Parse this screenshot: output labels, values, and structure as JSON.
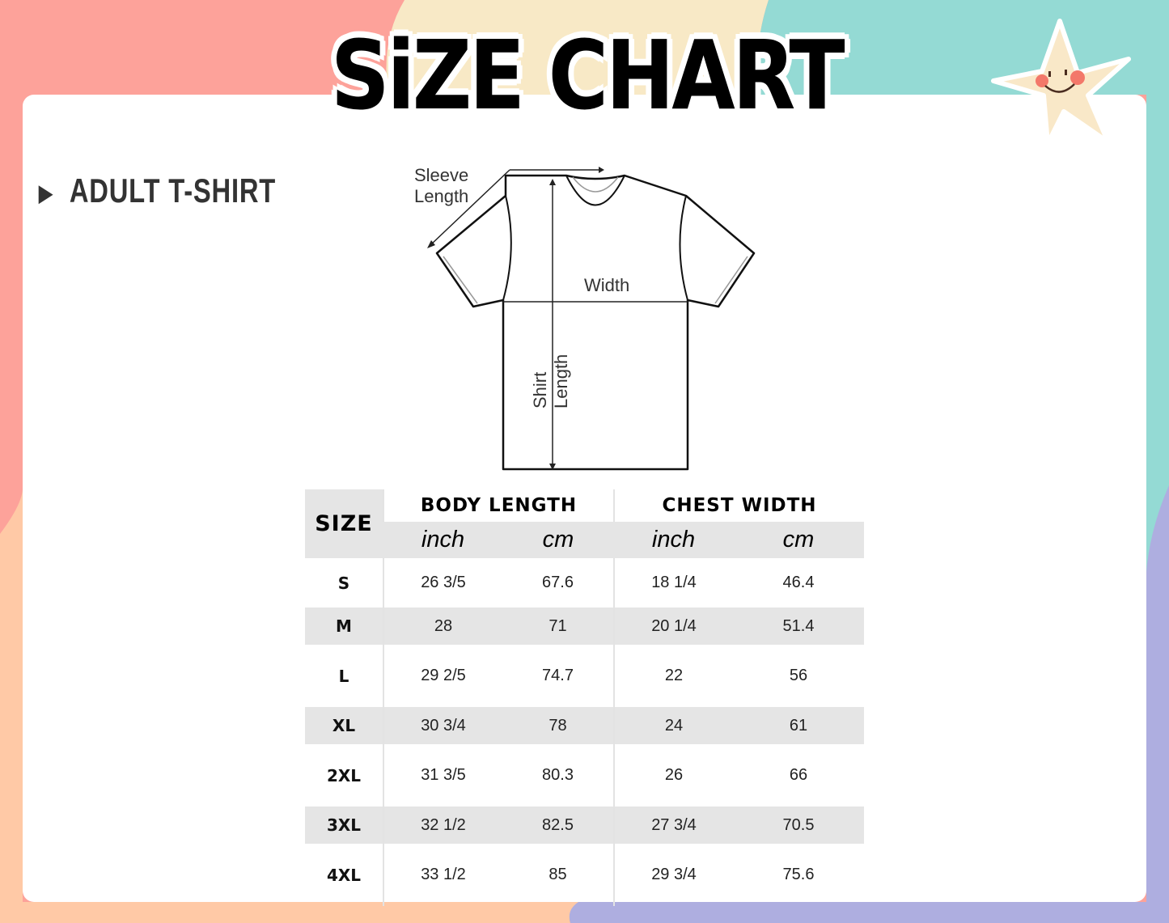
{
  "title": "SiZE CHART",
  "subtitle": "ADULT T-SHIRT",
  "colors": {
    "coral": "#fda29a",
    "cream": "#f8e9c6",
    "teal": "#94dad4",
    "peach": "#ffc9a6",
    "lavender": "#aeaee0",
    "star": "#f9e8c8"
  },
  "diagram": {
    "sleeve_line1": "Sleeve",
    "sleeve_line2": "Length",
    "width": "Width",
    "shirt_line1": "Shirt",
    "shirt_line2": "Length"
  },
  "table": {
    "size_header": "SIZE",
    "groups": [
      "BODY LENGTH",
      "CHEST WIDTH"
    ],
    "units": [
      "inch",
      "cm",
      "inch",
      "cm"
    ],
    "rows": [
      [
        "S",
        "26 3/5",
        "67.6",
        "18 1/4",
        "46.4"
      ],
      [
        "M",
        "28",
        "71",
        "20 1/4",
        "51.4"
      ],
      [
        "L",
        "29 2/5",
        "74.7",
        "22",
        "56"
      ],
      [
        "XL",
        "30 3/4",
        "78",
        "24",
        "61"
      ],
      [
        "2XL",
        "31 3/5",
        "80.3",
        "26",
        "66"
      ],
      [
        "3XL",
        "32 1/2",
        "82.5",
        "27 3/4",
        "70.5"
      ],
      [
        "4XL",
        "33 1/2",
        "85",
        "29 3/4",
        "75.6"
      ]
    ]
  }
}
